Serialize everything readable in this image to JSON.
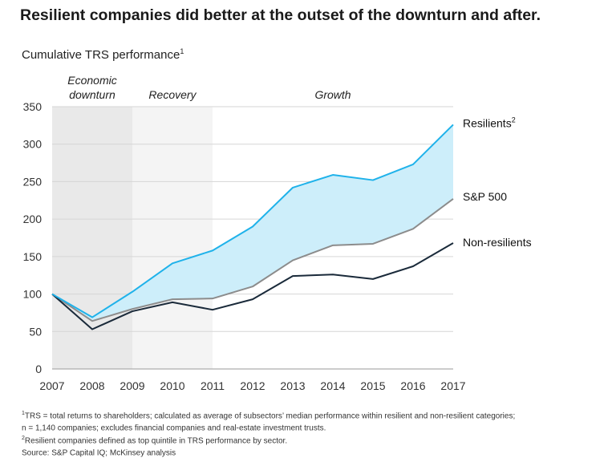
{
  "header": {
    "title": "Resilient companies did better at the outset of the downturn and after.",
    "subtitle": "Cumulative TRS performance",
    "subtitle_note": "1"
  },
  "chart_data": {
    "type": "line",
    "title": "Resilient companies did better at the outset of the downturn and after.",
    "ylabel": "Cumulative TRS performance",
    "x": [
      2007,
      2008,
      2009,
      2010,
      2011,
      2012,
      2013,
      2014,
      2015,
      2016,
      2017
    ],
    "ylim": [
      0,
      350
    ],
    "yticks": [
      0,
      50,
      100,
      150,
      200,
      250,
      300,
      350
    ],
    "grid": true,
    "phases": [
      {
        "label_lines": [
          "Economic",
          "downturn"
        ],
        "start": 2007,
        "end": 2009,
        "shade": "#e9e9e9"
      },
      {
        "label_lines": [
          "Recovery"
        ],
        "start": 2009,
        "end": 2011,
        "shade": "#f4f4f4"
      },
      {
        "label_lines": [
          "Growth"
        ],
        "start": 2011,
        "end": 2017,
        "shade": null
      }
    ],
    "series": [
      {
        "name": "Resilients",
        "note": "2",
        "color": "#1fb2ea",
        "values": [
          100,
          69,
          103,
          141,
          158,
          190,
          242,
          259,
          252,
          273,
          326
        ]
      },
      {
        "name": "S&P 500",
        "note": "",
        "color": "#8c8c8c",
        "values": [
          100,
          64,
          80,
          93,
          94,
          110,
          145,
          165,
          167,
          187,
          227
        ]
      },
      {
        "name": "Non-resilients",
        "note": "",
        "color": "#1a2a3a",
        "values": [
          100,
          53,
          77,
          89,
          79,
          93,
          124,
          126,
          120,
          137,
          168
        ]
      }
    ],
    "band": {
      "between": [
        "Resilients",
        "S&P 500"
      ],
      "color": "#cdeefa"
    }
  },
  "footnotes": [
    {
      "sup": "1",
      "text": "TRS = total returns to shareholders; calculated as average of subsectors’ median performance within resilient and non-resilient categories;"
    },
    {
      "sup": "",
      "text": "  n = 1,140 companies; excludes financial companies and real-estate investment trusts."
    },
    {
      "sup": "2",
      "text": "Resilient companies defined as top quintile in TRS performance by sector."
    },
    {
      "sup": "",
      "text": " Source: S&P Capital IQ; McKinsey analysis"
    }
  ]
}
